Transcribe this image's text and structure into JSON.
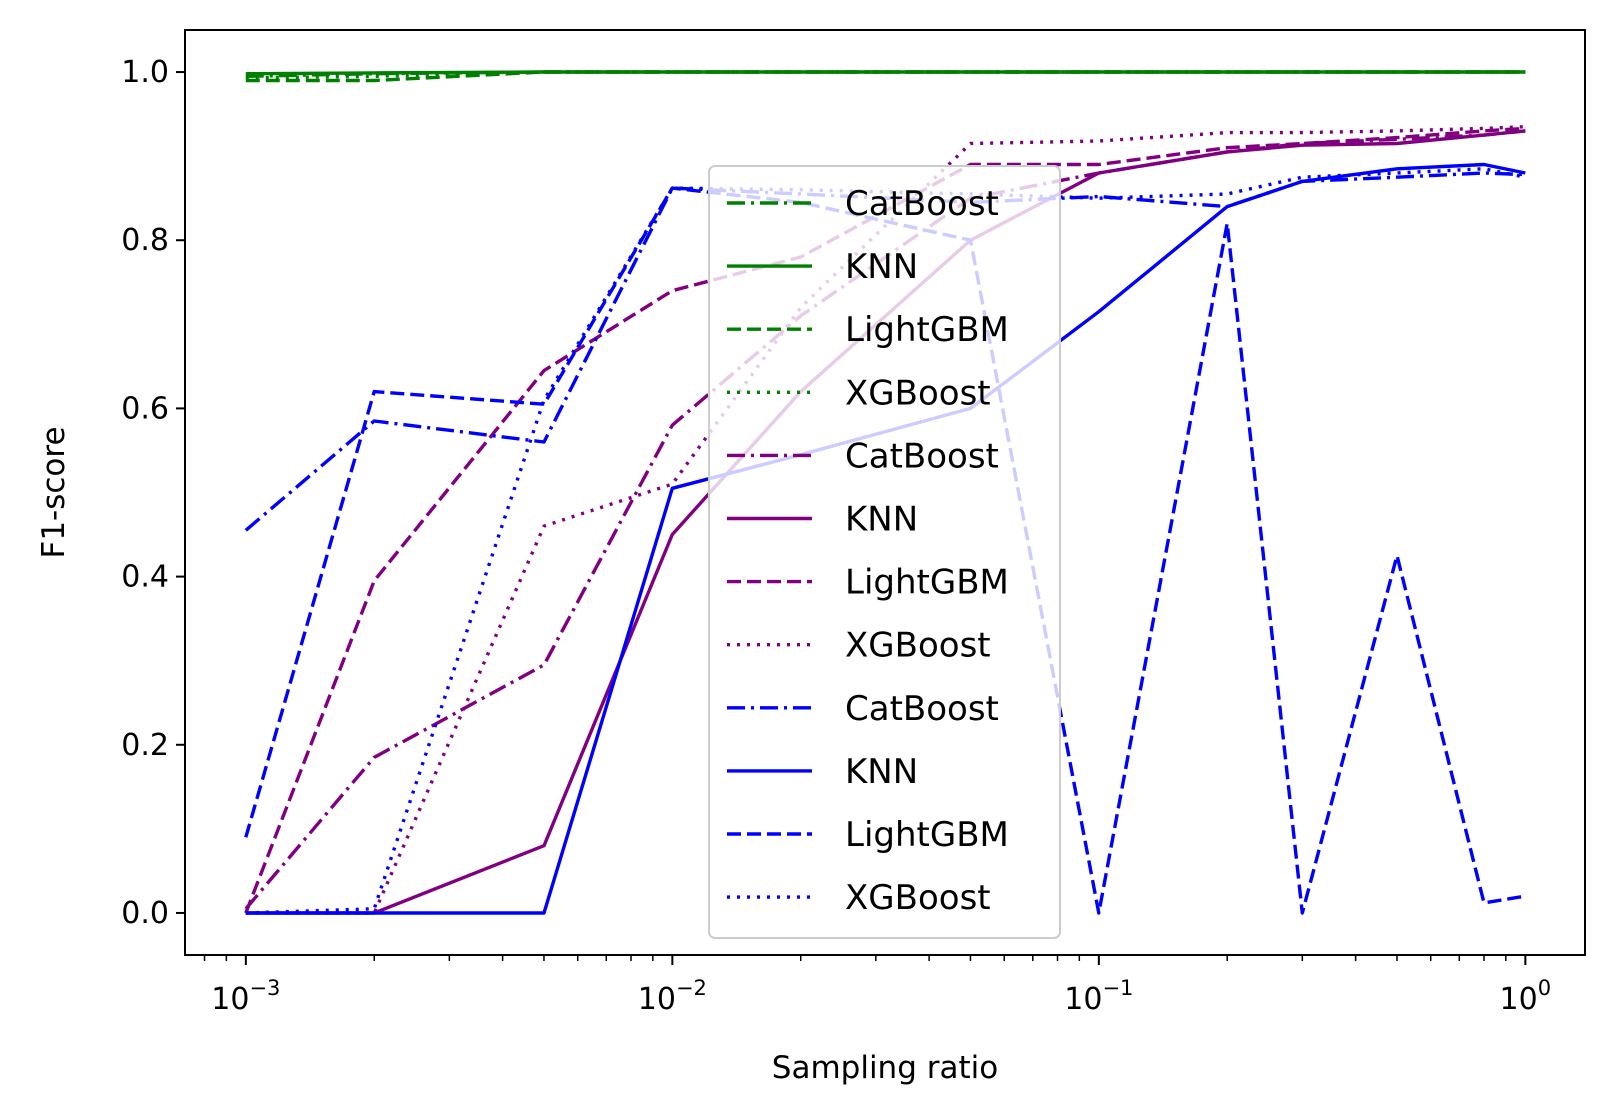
{
  "chart_data": {
    "type": "line",
    "title": "",
    "xlabel": "Sampling ratio",
    "ylabel": "F1-score",
    "xscale": "log",
    "xlim": [
      0.00072,
      1.38
    ],
    "ylim": [
      -0.05,
      1.05
    ],
    "grid": false,
    "legend_placement": "center",
    "x_ticks": [
      {
        "value": 0.001,
        "base": "10",
        "exp": "−3"
      },
      {
        "value": 0.01,
        "base": "10",
        "exp": "−2"
      },
      {
        "value": 0.1,
        "base": "10",
        "exp": "−1"
      },
      {
        "value": 1,
        "base": "10",
        "exp": "0"
      }
    ],
    "y_ticks": [
      {
        "value": 0.0,
        "label": "0.0"
      },
      {
        "value": 0.2,
        "label": "0.2"
      },
      {
        "value": 0.4,
        "label": "0.4"
      },
      {
        "value": 0.6,
        "label": "0.6"
      },
      {
        "value": 0.8,
        "label": "0.8"
      },
      {
        "value": 1.0,
        "label": "1.0"
      }
    ],
    "series": [
      {
        "name": "CatBoost",
        "color": "#008000",
        "dash": "dashdot",
        "x": [
          0.001,
          0.002,
          0.005,
          0.01,
          0.02,
          0.05,
          0.1,
          0.2,
          0.3,
          0.5,
          0.8,
          1.0
        ],
        "y": [
          0.995,
          0.998,
          1.0,
          1.0,
          1.0,
          1.0,
          1.0,
          1.0,
          1.0,
          1.0,
          1.0,
          1.0
        ]
      },
      {
        "name": "KNN",
        "color": "#008000",
        "dash": "solid",
        "x": [
          0.001,
          0.002,
          0.005,
          0.01,
          0.02,
          0.05,
          0.1,
          0.2,
          0.3,
          0.5,
          0.8,
          1.0
        ],
        "y": [
          0.998,
          0.999,
          1.0,
          1.0,
          1.0,
          1.0,
          1.0,
          1.0,
          1.0,
          1.0,
          1.0,
          1.0
        ]
      },
      {
        "name": "LightGBM",
        "color": "#008000",
        "dash": "dashed",
        "x": [
          0.001,
          0.002,
          0.005,
          0.01,
          0.02,
          0.05,
          0.1,
          0.2,
          0.3,
          0.5,
          0.8,
          1.0
        ],
        "y": [
          0.99,
          0.99,
          1.0,
          1.0,
          1.0,
          1.0,
          1.0,
          1.0,
          1.0,
          1.0,
          1.0,
          1.0
        ]
      },
      {
        "name": "XGBoost",
        "color": "#008000",
        "dash": "dotted",
        "x": [
          0.001,
          0.002,
          0.005,
          0.01,
          0.02,
          0.05,
          0.1,
          0.2,
          0.3,
          0.5,
          0.8,
          1.0
        ],
        "y": [
          0.993,
          0.995,
          1.0,
          1.0,
          1.0,
          1.0,
          1.0,
          1.0,
          1.0,
          1.0,
          1.0,
          1.0
        ]
      },
      {
        "name": "CatBoost",
        "color": "#800080",
        "dash": "dashdot",
        "x": [
          0.001,
          0.002,
          0.005,
          0.01,
          0.02,
          0.05,
          0.1,
          0.2,
          0.3,
          0.5,
          0.8,
          1.0
        ],
        "y": [
          0.005,
          0.185,
          0.295,
          0.58,
          0.71,
          0.85,
          0.88,
          0.905,
          0.915,
          0.92,
          0.925,
          0.93
        ]
      },
      {
        "name": "KNN",
        "color": "#800080",
        "dash": "solid",
        "x": [
          0.001,
          0.002,
          0.005,
          0.01,
          0.02,
          0.05,
          0.1,
          0.2,
          0.3,
          0.5,
          0.8,
          1.0
        ],
        "y": [
          0.0,
          0.0,
          0.08,
          0.45,
          0.62,
          0.8,
          0.88,
          0.905,
          0.913,
          0.915,
          0.925,
          0.93
        ]
      },
      {
        "name": "LightGBM",
        "color": "#800080",
        "dash": "dashed",
        "x": [
          0.001,
          0.002,
          0.005,
          0.01,
          0.02,
          0.05,
          0.1,
          0.2,
          0.3,
          0.5,
          0.8,
          1.0
        ],
        "y": [
          0.0,
          0.395,
          0.645,
          0.74,
          0.78,
          0.89,
          0.89,
          0.91,
          0.915,
          0.922,
          0.93,
          0.933
        ]
      },
      {
        "name": "XGBoost",
        "color": "#800080",
        "dash": "dotted",
        "x": [
          0.001,
          0.002,
          0.005,
          0.01,
          0.02,
          0.05,
          0.1,
          0.2,
          0.3,
          0.5,
          0.8,
          1.0
        ],
        "y": [
          0.0,
          0.0,
          0.46,
          0.51,
          0.72,
          0.915,
          0.918,
          0.928,
          0.928,
          0.93,
          0.933,
          0.935
        ]
      },
      {
        "name": "CatBoost",
        "color": "#0000ff",
        "dash": "dashdot",
        "x": [
          0.001,
          0.002,
          0.005,
          0.01,
          0.02,
          0.05,
          0.1,
          0.2,
          0.3,
          0.5,
          0.8,
          1.0
        ],
        "y": [
          0.455,
          0.585,
          0.56,
          0.862,
          0.855,
          0.845,
          0.852,
          0.84,
          0.87,
          0.875,
          0.88,
          0.878
        ]
      },
      {
        "name": "KNN",
        "color": "#0000ff",
        "dash": "solid",
        "x": [
          0.001,
          0.002,
          0.005,
          0.01,
          0.02,
          0.05,
          0.1,
          0.2,
          0.3,
          0.5,
          0.8,
          1.0
        ],
        "y": [
          0.0,
          0.0,
          0.0,
          0.505,
          0.545,
          0.6,
          0.715,
          0.84,
          0.87,
          0.885,
          0.89,
          0.88
        ]
      },
      {
        "name": "LightGBM",
        "color": "#0000ff",
        "dash": "dashed",
        "x": [
          0.001,
          0.002,
          0.005,
          0.01,
          0.02,
          0.05,
          0.1,
          0.2,
          0.3,
          0.5,
          0.8,
          1.0
        ],
        "y": [
          0.09,
          0.62,
          0.605,
          0.862,
          0.845,
          0.8,
          0.0,
          0.82,
          0.0,
          0.425,
          0.012,
          0.02
        ]
      },
      {
        "name": "XGBoost",
        "color": "#0000ff",
        "dash": "dotted",
        "x": [
          0.001,
          0.002,
          0.005,
          0.01,
          0.02,
          0.05,
          0.1,
          0.2,
          0.3,
          0.5,
          0.8,
          1.0
        ],
        "y": [
          0.0,
          0.005,
          0.61,
          0.862,
          0.86,
          0.855,
          0.85,
          0.855,
          0.875,
          0.88,
          0.885,
          0.875
        ]
      }
    ]
  }
}
